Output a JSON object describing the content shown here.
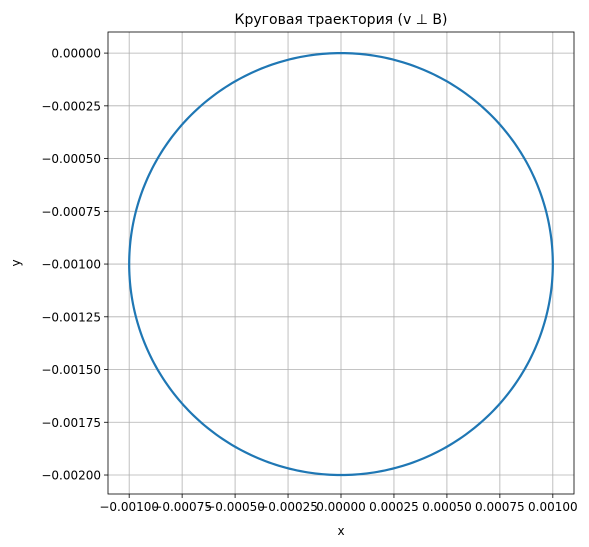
{
  "chart_data": {
    "type": "line",
    "title": "Круговая траектория (v ⊥ B)",
    "xlabel": "x",
    "ylabel": "y",
    "xlim": [
      -0.0011,
      0.0011
    ],
    "ylim": [
      -0.00209,
      0.0001
    ],
    "aspect": "equal",
    "grid": true,
    "xticks": [
      -0.001,
      -0.00075,
      -0.0005,
      -0.00025,
      0.0,
      0.00025,
      0.0005,
      0.00075,
      0.001
    ],
    "xtick_labels": [
      "−0.00100",
      "−0.00075",
      "−0.00050",
      "−0.00025",
      "0.00000",
      "0.00025",
      "0.00050",
      "0.00075",
      "0.00100"
    ],
    "yticks": [
      0.0,
      -0.00025,
      -0.0005,
      -0.00075,
      -0.001,
      -0.00125,
      -0.0015,
      -0.00175,
      -0.002
    ],
    "ytick_labels": [
      "0.00000",
      "−0.00025",
      "−0.00050",
      "−0.00075",
      "−0.00100",
      "−0.00125",
      "−0.00150",
      "−0.00175",
      "−0.00200"
    ],
    "series": [
      {
        "color": "#1f77b4",
        "shape": "circle",
        "center": [
          0.0,
          -0.001
        ],
        "radius": 0.001
      }
    ]
  }
}
